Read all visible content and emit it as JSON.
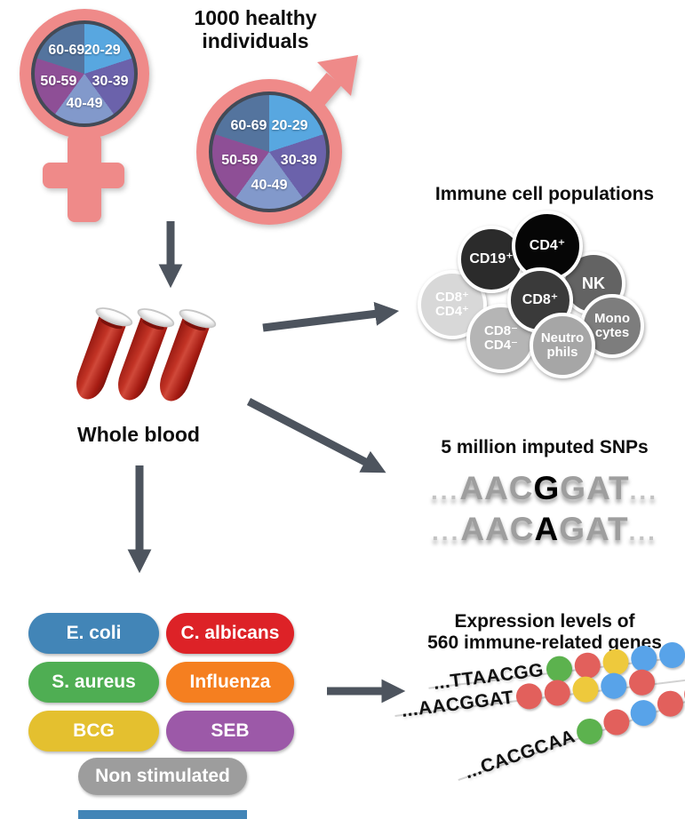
{
  "colors": {
    "arrow": "#4d545e",
    "salmon": "#ef8a89",
    "pie_ring": "#434a56",
    "strand": "#d2d2d2",
    "partial_bar": "#4285b7"
  },
  "header": {
    "line1": "1000 healthy",
    "line2": "individuals"
  },
  "demographics": {
    "age_groups": [
      "20-29",
      "30-39",
      "40-49",
      "50-59",
      "60-69"
    ],
    "pie_colors": [
      "#58a7e0",
      "#6b62ab",
      "#8299cb",
      "#8e4f96",
      "#54749e"
    ]
  },
  "whole_blood": {
    "label": "Whole blood"
  },
  "immune": {
    "title": "Immune cell populations",
    "cells": [
      {
        "id": "cd8pos-cd4pos",
        "lines": [
          "CD8⁺",
          "CD4⁺"
        ],
        "color": "#d8d8d8"
      },
      {
        "id": "cd19pos",
        "lines": [
          "CD19⁺"
        ],
        "color": "#2b2b2b"
      },
      {
        "id": "nk",
        "lines": [
          "NK"
        ],
        "color": "#636363"
      },
      {
        "id": "cd4pos",
        "lines": [
          "CD4⁺"
        ],
        "color": "#060606"
      },
      {
        "id": "cd8neg-cd4neg",
        "lines": [
          "CD8⁻",
          "CD4⁻"
        ],
        "color": "#b5b5b5"
      },
      {
        "id": "cd8pos",
        "lines": [
          "CD8⁺"
        ],
        "color": "#3a3a3a"
      },
      {
        "id": "monocytes",
        "lines": [
          "Mono",
          "cytes"
        ],
        "color": "#7d7d7d"
      },
      {
        "id": "neutrophils",
        "lines": [
          "Neutro",
          "phils"
        ],
        "color": "#a6a6a6"
      }
    ]
  },
  "snps": {
    "title": "5 million imputed SNPs",
    "ellipsis": "...",
    "rows": [
      {
        "pre": "AAC",
        "variant": "G",
        "post": "GAT"
      },
      {
        "pre": "AAC",
        "variant": "A",
        "post": "GAT"
      }
    ]
  },
  "stimuli": {
    "items": [
      {
        "label": "E. coli",
        "color": "#4285b7"
      },
      {
        "label": "C. albicans",
        "color": "#dd2227"
      },
      {
        "label": "S. aureus",
        "color": "#4fae53"
      },
      {
        "label": "Influenza",
        "color": "#f57f20"
      },
      {
        "label": "BCG",
        "color": "#e4c02f"
      },
      {
        "label": "SEB",
        "color": "#9c59a8"
      },
      {
        "label": "Non stimulated",
        "color": "#9d9d9d"
      }
    ]
  },
  "expression": {
    "title_line1": "Expression levels of",
    "title_line2": "560 immune-related genes",
    "palette": {
      "green": "#5cb24e",
      "red": "#e2605c",
      "yellow": "#eec93c",
      "blue": "#58a3e9"
    },
    "rows": [
      {
        "prefix": "...",
        "seq": "TTAACGG",
        "dots": [
          "green",
          "red",
          "yellow",
          "blue",
          "blue"
        ]
      },
      {
        "prefix": "...",
        "seq": "AACGGAT",
        "dots": [
          "red",
          "red",
          "yellow",
          "blue",
          "red"
        ]
      },
      {
        "prefix": "...",
        "seq": "CACGCAA",
        "dots": [
          "green",
          "red",
          "blue",
          "red",
          "red"
        ]
      }
    ]
  }
}
